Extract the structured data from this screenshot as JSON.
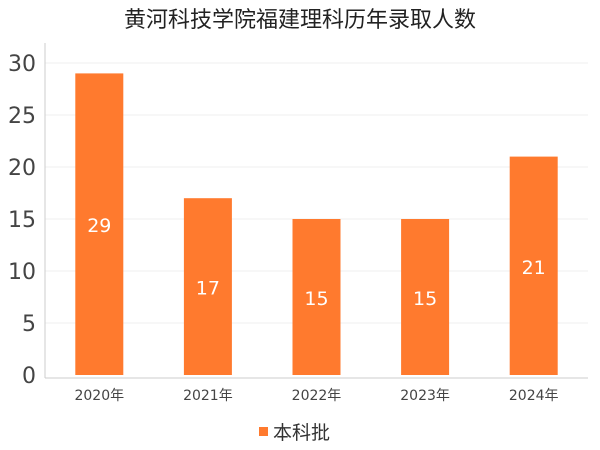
{
  "chart_data": {
    "type": "bar",
    "title": "黄河科技学院福建理科历年录取人数",
    "categories": [
      "2020年",
      "2021年",
      "2022年",
      "2023年",
      "2024年"
    ],
    "series": [
      {
        "name": "本科批",
        "values": [
          29,
          17,
          15,
          15,
          21
        ]
      }
    ],
    "ylim": [
      0,
      30
    ],
    "yticks": [
      0,
      5,
      10,
      15,
      20,
      25,
      30
    ],
    "grid": true,
    "legend": "bottom",
    "colors": {
      "bar": "#FF7A2E",
      "label": "#ffffff",
      "title": "#222222",
      "axis_text": "#444444",
      "grid": "#efefef",
      "axis_line": "#cccccc"
    }
  }
}
